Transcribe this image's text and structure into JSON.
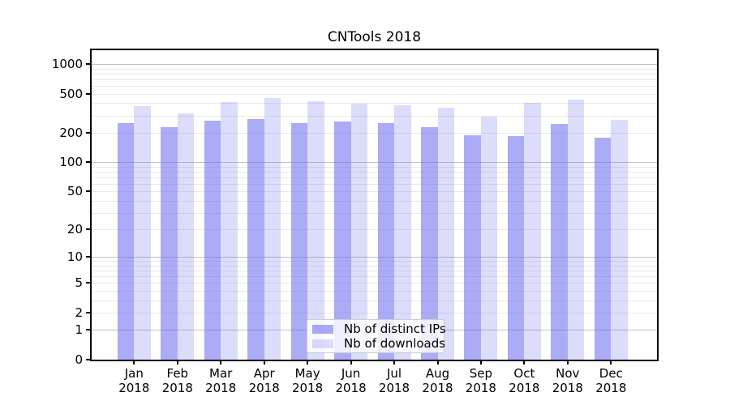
{
  "title": "CNTools 2018",
  "colors": {
    "ips_fill": "rgba(102,102,238,0.55)",
    "downloads_fill": "rgba(102,102,238,0.23)",
    "grid_major": "#c2c2c2",
    "grid_minor": "#e9e9e9",
    "axis": "#000000",
    "background": "#ffffff"
  },
  "chart_data": {
    "type": "bar",
    "title": "CNTools 2018",
    "categories": [
      "Jan 2018",
      "Feb 2018",
      "Mar 2018",
      "Apr 2018",
      "May 2018",
      "Jun 2018",
      "Jul 2018",
      "Aug 2018",
      "Sep 2018",
      "Oct 2018",
      "Nov 2018",
      "Dec 2018"
    ],
    "series": [
      {
        "name": "Nb of distinct IPs",
        "color": "rgba(102,102,238,0.55)",
        "values": [
          250,
          228,
          265,
          275,
          250,
          260,
          250,
          228,
          188,
          185,
          246,
          178
        ]
      },
      {
        "name": "Nb of downloads",
        "color": "rgba(102,102,238,0.23)",
        "values": [
          373,
          314,
          410,
          451,
          418,
          395,
          380,
          359,
          291,
          402,
          434,
          270
        ]
      }
    ],
    "xlabel": "",
    "ylabel": "",
    "yscale": "log1p",
    "yticks": [
      0,
      1,
      2,
      5,
      10,
      20,
      50,
      100,
      200,
      500,
      1000
    ],
    "ylim": [
      0,
      1380
    ],
    "grid": "both",
    "legend_position": "lower center"
  }
}
